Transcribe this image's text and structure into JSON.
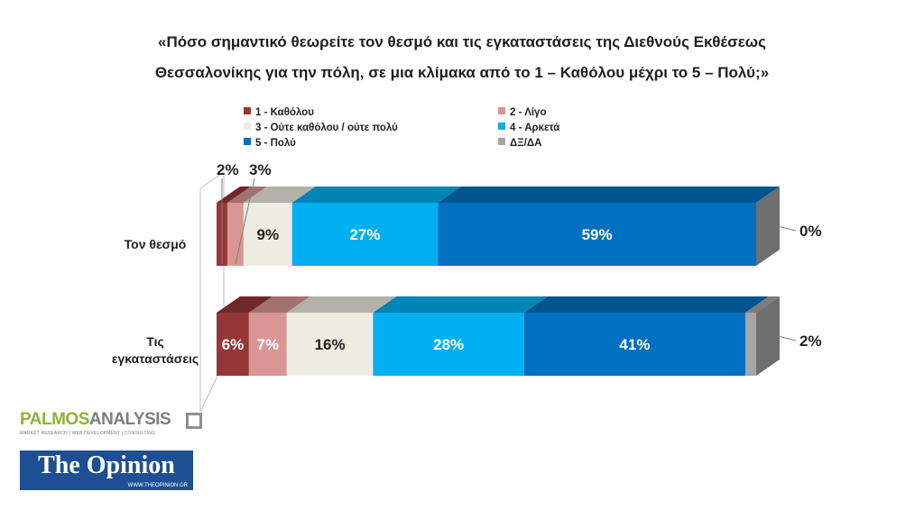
{
  "title_lines": [
    "«Πόσο σημαντικό θεωρείτε τον θεσμό και τις εγκαταστάσεις της Διεθνούς Εκθέσεως",
    "Θεσσαλονίκης για την πόλη, σε μια κλίμακα από το 1 – Καθόλου μέχρι το 5 – Πολύ;»"
  ],
  "legend": [
    {
      "label": "1 - Καθόλου",
      "color": "#953735"
    },
    {
      "label": "2 - Λίγο",
      "color": "#d99694"
    },
    {
      "label": "3 - Ούτε καθόλου / ούτε πολύ",
      "color": "#eeece1"
    },
    {
      "label": "4 - Αρκετά",
      "color": "#00b0f0"
    },
    {
      "label": "5 - Πολύ",
      "color": "#0070c0"
    },
    {
      "label": "ΔΞ/ΔΑ",
      "color": "#a6a6a6"
    }
  ],
  "chart_data": {
    "type": "bar",
    "orientation": "horizontal",
    "stacked": true,
    "percent_stacked": true,
    "three_d": true,
    "categories": [
      "Τον θεσμό",
      "Τις εγκαταστάσεις"
    ],
    "series": [
      {
        "name": "1 - Καθόλου",
        "color": "#953735",
        "values": [
          2,
          6
        ],
        "labels": [
          "2%",
          "6%"
        ]
      },
      {
        "name": "2 - Λίγο",
        "color": "#d99694",
        "values": [
          3,
          7
        ],
        "labels": [
          "3%",
          "7%"
        ]
      },
      {
        "name": "3 - Ούτε καθόλου / ούτε πολύ",
        "color": "#eeece1",
        "values": [
          9,
          16
        ],
        "labels": [
          "9%",
          "16%"
        ]
      },
      {
        "name": "4 - Αρκετά",
        "color": "#00b0f0",
        "values": [
          27,
          28
        ],
        "labels": [
          "27%",
          "28%"
        ]
      },
      {
        "name": "5 - Πολύ",
        "color": "#0070c0",
        "values": [
          59,
          41
        ],
        "labels": [
          "59%",
          "41%"
        ]
      },
      {
        "name": "ΔΞ/ΔΑ",
        "color": "#a6a6a6",
        "values": [
          0,
          2
        ],
        "labels": [
          "0%",
          "2%"
        ]
      }
    ],
    "legend_position": "top",
    "grid": false
  },
  "logos": {
    "palmos": {
      "brand_a": "PALMOS",
      "brand_b": "ANALYSIS",
      "tagline": "MARKET RESEARCH | WEB DEVELOPMENT | CONSULTING"
    },
    "opinion": {
      "name": "The Opinion",
      "url": "WWW.THEOPINION.GR"
    }
  }
}
